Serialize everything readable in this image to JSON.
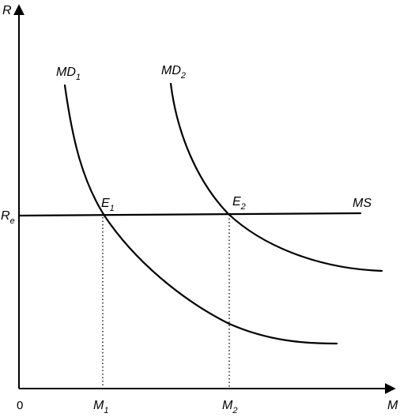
{
  "axes": {
    "y_label": "R",
    "x_label": "M",
    "origin_label": "0"
  },
  "rate": {
    "label_main": "R",
    "label_sub": "e"
  },
  "curves": {
    "md1": {
      "main": "MD",
      "sub": "1"
    },
    "md2": {
      "main": "MD",
      "sub": "2"
    },
    "ms": {
      "label": "MS"
    }
  },
  "points": {
    "e1": {
      "main": "E",
      "sub": "1"
    },
    "e2": {
      "main": "E",
      "sub": "2"
    }
  },
  "quantities": {
    "m1": {
      "main": "M",
      "sub": "1"
    },
    "m2": {
      "main": "M",
      "sub": "2"
    }
  }
}
